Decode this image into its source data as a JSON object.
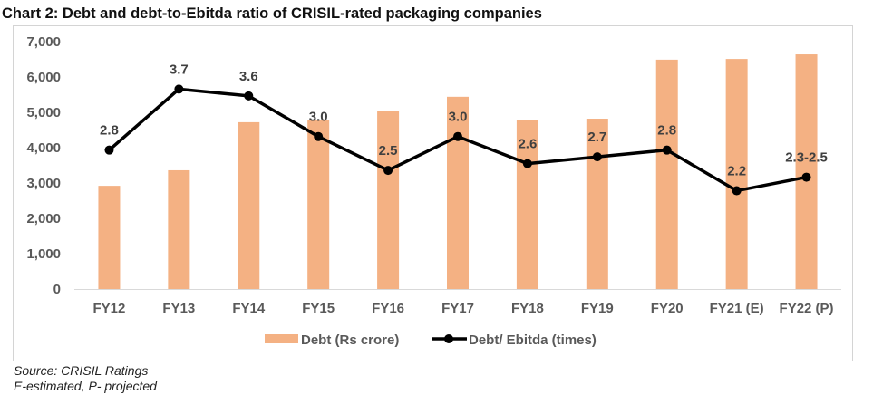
{
  "title": "Chart 2: Debt and debt-to-Ebitda ratio of CRISIL-rated packaging companies",
  "footnotes": {
    "source": "Source: CRISIL Ratings",
    "note": "E-estimated, P- projected"
  },
  "colors": {
    "bar": "#f4b183",
    "line": "#000000",
    "axis": "#d9d9d9"
  },
  "chart_data": {
    "type": "bar",
    "title": "Chart 2: Debt and debt-to-Ebitda ratio of CRISIL-rated packaging companies",
    "categories": [
      "FY12",
      "FY13",
      "FY14",
      "FY15",
      "FY16",
      "FY17",
      "FY18",
      "FY19",
      "FY20",
      "FY21 (E)",
      "FY22 (P)"
    ],
    "series": [
      {
        "name": "Debt (Rs crore)",
        "type": "bar",
        "axis": "primary",
        "values": [
          2920,
          3360,
          4720,
          4770,
          5050,
          5440,
          4770,
          4820,
          6490,
          6510,
          6640
        ]
      },
      {
        "name": "Debt/ Ebitda (times)",
        "type": "line",
        "axis": "secondary",
        "values": [
          2.8,
          3.7,
          3.6,
          3.0,
          2.5,
          3.0,
          2.6,
          2.7,
          2.8,
          2.2,
          2.4
        ],
        "labels": [
          "2.8",
          "3.7",
          "3.6",
          "3.0",
          "2.5",
          "3.0",
          "2.6",
          "2.7",
          "2.8",
          "2.2",
          "2.3-2.5"
        ]
      }
    ],
    "yaxis": {
      "ylim": [
        0,
        7000
      ],
      "ticks": [
        0,
        1000,
        2000,
        3000,
        4000,
        5000,
        6000,
        7000
      ],
      "tick_labels": [
        "0",
        "1,000",
        "2,000",
        "3,000",
        "4,000",
        "5,000",
        "6,000",
        "7,000"
      ]
    },
    "y2axis": {
      "visible": false,
      "ylim": [
        0.75,
        4.4
      ]
    },
    "xlabel": "",
    "ylabel": "",
    "grid": false,
    "legend": {
      "position": "bottom",
      "entries": [
        "Debt (Rs crore)",
        "Debt/ Ebitda (times)"
      ]
    }
  }
}
